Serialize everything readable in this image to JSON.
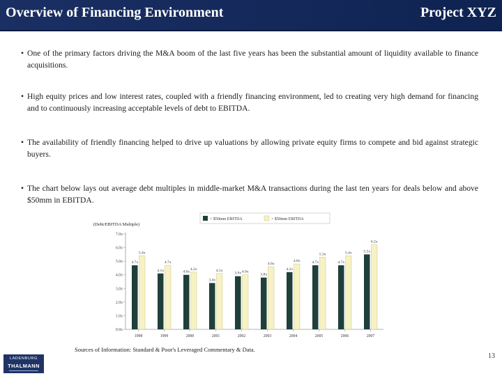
{
  "header": {
    "title": "Overview of Financing Environment",
    "project": "Project XYZ"
  },
  "bullets": [
    "One of the primary factors driving the M&A boom of the last five years has been the substantial amount of liquidity available to finance acquisitions.",
    "High equity prices and low interest rates, coupled with a friendly financing environment, led to creating very high demand for financing and to continuously increasing acceptable levels of debt to EBITDA.",
    "The availability of friendly financing helped to drive up valuations by allowing private equity firms to compete and bid against strategic buyers.",
    "The chart below lays out average debt multiples in middle-market M&A transactions during the last ten years for deals below and above $50mm in EBITDA."
  ],
  "bullet_marker": "•",
  "chart_data": {
    "type": "bar",
    "ylabel": "(Debt/EBITDA Multiple)",
    "categories": [
      "1998",
      "1999",
      "2000",
      "2001",
      "2002",
      "2003",
      "2004",
      "2005",
      "2006",
      "2007"
    ],
    "series": [
      {
        "name": "< $50mm EBITDA",
        "color": "#1f3f3a",
        "values": [
          4.7,
          4.1,
          4.0,
          3.4,
          3.9,
          3.8,
          4.2,
          4.7,
          4.7,
          5.5
        ],
        "labels": [
          "4.7x",
          "4.1x",
          "4.0x",
          "3.4x",
          "3.9x",
          "3.8x",
          "4.2x",
          "4.7x",
          "4.7x",
          "5.5x"
        ]
      },
      {
        "name": "> $50mm EBITDA",
        "color": "#f6f2c4",
        "values": [
          5.4,
          4.7,
          4.2,
          4.1,
          4.0,
          4.6,
          4.8,
          5.3,
          5.4,
          6.2
        ],
        "labels": [
          "5.4x",
          "4.7x",
          "4.2x",
          "4.1x",
          "4.0x",
          "4.6x",
          "4.8x",
          "5.3x",
          "5.4x",
          "6.2x"
        ]
      }
    ],
    "ylim": [
      0,
      7
    ],
    "yticks": [
      "0.0x",
      "1.0x",
      "2.0x",
      "3.0x",
      "4.0x",
      "5.0x",
      "6.0x",
      "7.0x"
    ],
    "legend_position": "top-right",
    "grid": false
  },
  "source": "Sources of Information: Standard & Poor's Leveraged Commentary & Data.",
  "page_number": "13",
  "logo": {
    "line1": "LADENBURG",
    "line2": "THALMANN",
    "line3": ""
  }
}
